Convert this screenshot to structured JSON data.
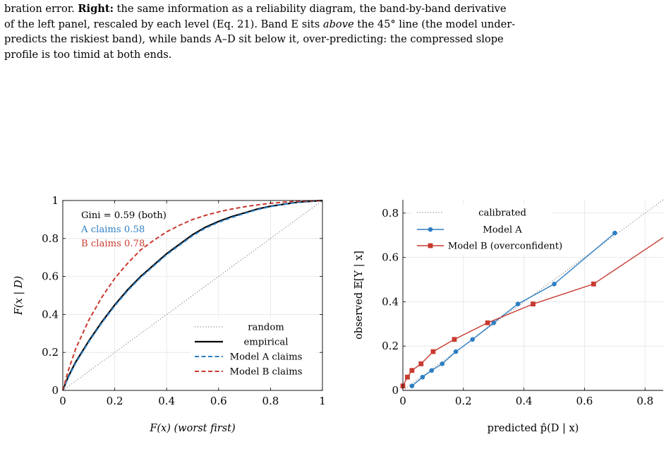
{
  "caption": {
    "line1": "bration error.",
    "right_label": "Right:",
    "line1_rest": " the same information as a reliability diagram, the band-by-band derivative",
    "line2": "of the left panel, rescaled by each level (Eq. 21). Band E sits ",
    "above_word": "above",
    "line2_rest": " the 45° line (the model under-",
    "line3": "predicts the riskiest band), while bands A–D sit below it, over-predicting: the compressed slope",
    "line4": "profile is too timid at both ends."
  },
  "chart_data": [
    {
      "type": "line",
      "xlabel": "F(x) (worst first)",
      "ylabel": "F(x | D)",
      "xlim": [
        0,
        1
      ],
      "ylim": [
        0,
        1
      ],
      "xticks": [
        "0",
        "0.2",
        "0.4",
        "0.6",
        "0.8",
        "1"
      ],
      "yticks": [
        "0",
        "0.2",
        "0.4",
        "0.6",
        "0.8",
        "1"
      ],
      "grid": true,
      "legend_position": "bottom-right",
      "annotations": {
        "gini": "Gini = 0.59 (both)",
        "a_claims": "A claims 0.58",
        "b_claims": "B claims 0.78"
      },
      "series": [
        {
          "name": "random",
          "color": "#888888",
          "style": "dotted",
          "x": [
            0,
            1
          ],
          "y": [
            0,
            1
          ]
        },
        {
          "name": "empirical",
          "color": "#000000",
          "style": "solid",
          "x": [
            0,
            0.02,
            0.05,
            0.1,
            0.15,
            0.2,
            0.25,
            0.3,
            0.35,
            0.4,
            0.45,
            0.5,
            0.55,
            0.6,
            0.65,
            0.7,
            0.75,
            0.8,
            0.85,
            0.9,
            0.95,
            1.0
          ],
          "y": [
            0,
            0.07,
            0.15,
            0.26,
            0.36,
            0.45,
            0.53,
            0.6,
            0.66,
            0.72,
            0.77,
            0.82,
            0.86,
            0.89,
            0.915,
            0.935,
            0.955,
            0.97,
            0.98,
            0.99,
            0.995,
            1.0
          ]
        },
        {
          "name": "Model A claims",
          "color": "#2e7fc4",
          "style": "dashed",
          "x": [
            0,
            0.02,
            0.05,
            0.1,
            0.15,
            0.2,
            0.25,
            0.3,
            0.35,
            0.4,
            0.45,
            0.5,
            0.55,
            0.6,
            0.65,
            0.7,
            0.75,
            0.8,
            0.85,
            0.9,
            0.95,
            1.0
          ],
          "y": [
            0,
            0.065,
            0.145,
            0.255,
            0.355,
            0.445,
            0.525,
            0.595,
            0.655,
            0.715,
            0.765,
            0.815,
            0.855,
            0.885,
            0.91,
            0.932,
            0.952,
            0.968,
            0.98,
            0.99,
            0.995,
            1.0
          ]
        },
        {
          "name": "Model B claims",
          "color": "#c83a2f",
          "style": "dashed",
          "x": [
            0,
            0.02,
            0.05,
            0.1,
            0.15,
            0.2,
            0.25,
            0.3,
            0.35,
            0.4,
            0.45,
            0.5,
            0.55,
            0.6,
            0.65,
            0.7,
            0.75,
            0.8,
            0.85,
            0.9,
            0.95,
            1.0
          ],
          "y": [
            0,
            0.1,
            0.22,
            0.37,
            0.49,
            0.59,
            0.67,
            0.74,
            0.79,
            0.835,
            0.87,
            0.9,
            0.922,
            0.94,
            0.955,
            0.967,
            0.977,
            0.985,
            0.991,
            0.996,
            0.998,
            1.0
          ]
        }
      ]
    },
    {
      "type": "line",
      "xlabel": "predicted p̂(D | x)",
      "ylabel": "observed 𝔼[Y | x]",
      "xlim": [
        0,
        0.86
      ],
      "ylim": [
        0,
        0.86
      ],
      "xticks": [
        "0",
        "0.2",
        "0.4",
        "0.6",
        "0.8"
      ],
      "yticks": [
        "0",
        "0.2",
        "0.4",
        "0.6",
        "0.8"
      ],
      "grid": true,
      "legend_position": "top-left",
      "series": [
        {
          "name": "calibrated",
          "color": "#888888",
          "style": "dotted",
          "x": [
            0,
            0.86
          ],
          "y": [
            0,
            0.86
          ]
        },
        {
          "name": "Model A",
          "color": "#2e7fc4",
          "style": "solid",
          "marker": "circle",
          "x": [
            0.03,
            0.065,
            0.095,
            0.13,
            0.175,
            0.23,
            0.3,
            0.38,
            0.5,
            0.7
          ],
          "y": [
            0.02,
            0.06,
            0.09,
            0.12,
            0.175,
            0.23,
            0.305,
            0.39,
            0.48,
            0.71
          ]
        },
        {
          "name": "Model B (overconfident)",
          "color": "#c83a2f",
          "style": "solid",
          "marker": "square",
          "x": [
            0,
            0.015,
            0.03,
            0.06,
            0.1,
            0.17,
            0.28,
            0.43,
            0.63,
            0.86
          ],
          "y": [
            0.02,
            0.06,
            0.09,
            0.12,
            0.175,
            0.23,
            0.305,
            0.39,
            0.48,
            0.69
          ]
        }
      ]
    }
  ]
}
